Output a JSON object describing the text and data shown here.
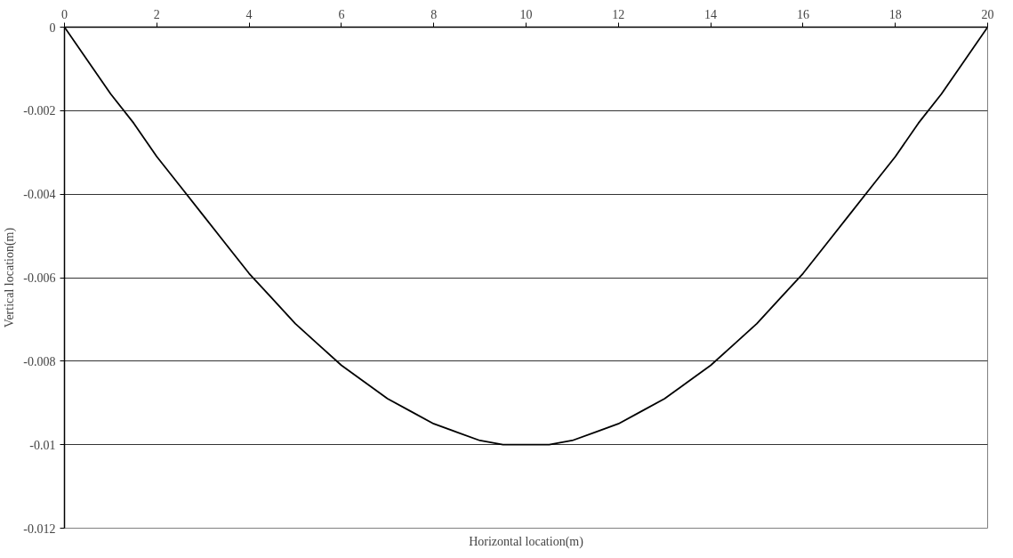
{
  "chart_data": {
    "type": "line",
    "xlabel": "Horizontal location(m)",
    "ylabel": "Vertical location(m)",
    "x": [
      0,
      0.5,
      1,
      1.5,
      2,
      2.5,
      3,
      3.5,
      4,
      4.5,
      5,
      5.5,
      6,
      6.5,
      7,
      7.5,
      8,
      8.5,
      9,
      9.5,
      10,
      10.5,
      11,
      11.5,
      12,
      12.5,
      13,
      13.5,
      14,
      14.5,
      15,
      15.5,
      16,
      16.5,
      17,
      17.5,
      18,
      18.5,
      19,
      19.5,
      20
    ],
    "series": [
      {
        "color": "#000000",
        "values": [
          0,
          -0.0008,
          -0.0016,
          -0.0023,
          -0.0031,
          -0.0038,
          -0.0045,
          -0.0052,
          -0.0059,
          -0.0065,
          -0.0071,
          -0.0076,
          -0.0081,
          -0.0085,
          -0.0089,
          -0.0092,
          -0.0095,
          -0.0097,
          -0.0099,
          -0.01,
          -0.01,
          -0.01,
          -0.0099,
          -0.0097,
          -0.0095,
          -0.0092,
          -0.0089,
          -0.0085,
          -0.0081,
          -0.0076,
          -0.0071,
          -0.0065,
          -0.0059,
          -0.0052,
          -0.0045,
          -0.0038,
          -0.0031,
          -0.0023,
          -0.0016,
          -0.0008,
          0
        ]
      }
    ],
    "xlim": [
      0,
      20
    ],
    "xticks": [
      0,
      2,
      4,
      6,
      8,
      10,
      12,
      14,
      16,
      18,
      20
    ],
    "ylim": [
      -0.012,
      0
    ],
    "yticks": [
      0,
      -0.002,
      -0.004,
      -0.006,
      -0.008,
      -0.01,
      -0.012
    ],
    "grid": "y",
    "marker": "none",
    "line_style": "solid"
  }
}
